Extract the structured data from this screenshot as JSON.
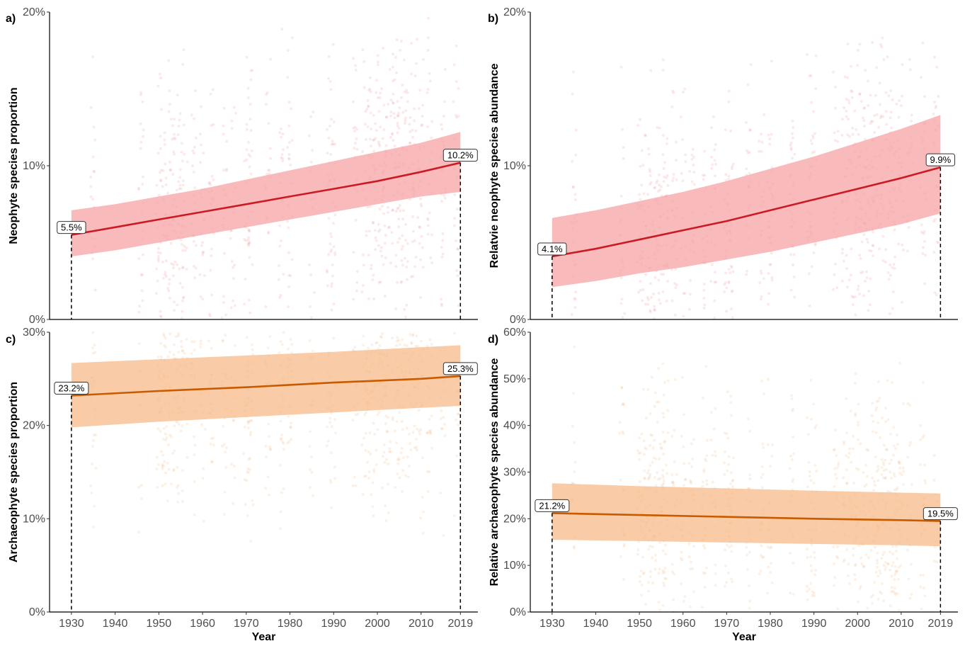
{
  "colors": {
    "neophyte_line": "#cc1a24",
    "neophyte_band": "#f7a3a6",
    "neophyte_points": "#e0505a",
    "archaeophyte_line": "#c85a00",
    "archaeophyte_band": "#f7b989",
    "archaeophyte_points": "#e38a3a"
  },
  "chart_data": [
    {
      "panel": "a)",
      "type": "line",
      "ylabel": "Neophyte species proportion",
      "xlabel": "",
      "xlim": [
        1925,
        2023
      ],
      "ylim": [
        0,
        20
      ],
      "y_ticks": [
        "0%",
        "10%",
        "20%"
      ],
      "y_tick_values": [
        0,
        10,
        20
      ],
      "x_ticks": [],
      "x_tick_values": [],
      "color_key": "neophyte",
      "series": [
        {
          "x": [
            1930,
            1940,
            1950,
            1960,
            1970,
            1980,
            1990,
            2000,
            2010,
            2019
          ],
          "values": [
            5.5,
            6.0,
            6.5,
            7.0,
            7.5,
            8.0,
            8.5,
            9.0,
            9.6,
            10.2
          ],
          "lower": [
            4.1,
            4.5,
            5.0,
            5.5,
            6.0,
            6.5,
            7.0,
            7.5,
            8.0,
            8.3
          ],
          "upper": [
            7.1,
            7.5,
            8.0,
            8.5,
            9.1,
            9.7,
            10.3,
            10.9,
            11.5,
            12.2
          ]
        }
      ],
      "callouts": [
        {
          "x": 1930,
          "y": 5.5,
          "label": "5.5%"
        },
        {
          "x": 2019,
          "y": 10.2,
          "label": "10.2%"
        }
      ]
    },
    {
      "panel": "b)",
      "type": "line",
      "ylabel": "Relatvie neophyte species abundance",
      "xlabel": "",
      "xlim": [
        1925,
        2023
      ],
      "ylim": [
        0,
        20
      ],
      "y_ticks": [
        "0%",
        "10%",
        "20%"
      ],
      "y_tick_values": [
        0,
        10,
        20
      ],
      "x_ticks": [],
      "x_tick_values": [],
      "color_key": "neophyte",
      "series": [
        {
          "x": [
            1930,
            1940,
            1950,
            1960,
            1970,
            1980,
            1990,
            2000,
            2010,
            2019
          ],
          "values": [
            4.1,
            4.6,
            5.2,
            5.8,
            6.4,
            7.1,
            7.8,
            8.5,
            9.2,
            9.9
          ],
          "lower": [
            2.1,
            2.5,
            3.0,
            3.4,
            3.9,
            4.4,
            5.0,
            5.6,
            6.2,
            6.9
          ],
          "upper": [
            6.6,
            7.1,
            7.7,
            8.3,
            9.0,
            9.8,
            10.6,
            11.5,
            12.4,
            13.3
          ]
        }
      ],
      "callouts": [
        {
          "x": 1930,
          "y": 4.1,
          "label": "4.1%"
        },
        {
          "x": 2019,
          "y": 9.9,
          "label": "9.9%"
        }
      ]
    },
    {
      "panel": "c)",
      "type": "line",
      "ylabel": "Archaeophyte species proportion",
      "xlabel": "Year",
      "xlim": [
        1925,
        2023
      ],
      "ylim": [
        0,
        30
      ],
      "y_ticks": [
        "0%",
        "10%",
        "20%",
        "30%"
      ],
      "y_tick_values": [
        0,
        10,
        20,
        30
      ],
      "x_ticks": [
        "1930",
        "1940",
        "1950",
        "1960",
        "1970",
        "1980",
        "1990",
        "2000",
        "2010",
        "2019"
      ],
      "x_tick_values": [
        1930,
        1940,
        1950,
        1960,
        1970,
        1980,
        1990,
        2000,
        2010,
        2019
      ],
      "color_key": "archaeophyte",
      "series": [
        {
          "x": [
            1930,
            1950,
            1970,
            1990,
            2010,
            2019
          ],
          "values": [
            23.2,
            23.7,
            24.1,
            24.6,
            25.0,
            25.3
          ],
          "lower": [
            19.8,
            20.4,
            20.9,
            21.4,
            21.9,
            22.1
          ],
          "upper": [
            26.7,
            27.1,
            27.5,
            27.9,
            28.4,
            28.6
          ]
        }
      ],
      "callouts": [
        {
          "x": 1930,
          "y": 23.2,
          "label": "23.2%"
        },
        {
          "x": 2019,
          "y": 25.3,
          "label": "25.3%"
        }
      ]
    },
    {
      "panel": "d)",
      "type": "line",
      "ylabel": "Relative archaeophyte species abundance",
      "xlabel": "Year",
      "xlim": [
        1925,
        2023
      ],
      "ylim": [
        0,
        60
      ],
      "y_ticks": [
        "0%",
        "10%",
        "20%",
        "30%",
        "40%",
        "50%",
        "60%"
      ],
      "y_tick_values": [
        0,
        10,
        20,
        30,
        40,
        50,
        60
      ],
      "x_ticks": [
        "1930",
        "1940",
        "1950",
        "1960",
        "1970",
        "1980",
        "1990",
        "2000",
        "2010",
        "2019"
      ],
      "x_tick_values": [
        1930,
        1940,
        1950,
        1960,
        1970,
        1980,
        1990,
        2000,
        2010,
        2019
      ],
      "color_key": "archaeophyte",
      "series": [
        {
          "x": [
            1930,
            1950,
            1970,
            1990,
            2010,
            2019
          ],
          "values": [
            21.2,
            20.8,
            20.4,
            20.0,
            19.7,
            19.5
          ],
          "lower": [
            15.5,
            15.2,
            14.9,
            14.6,
            14.3,
            14.1
          ],
          "upper": [
            27.6,
            27.0,
            26.5,
            26.0,
            25.6,
            25.4
          ]
        }
      ],
      "callouts": [
        {
          "x": 1930,
          "y": 21.2,
          "label": "21.2%"
        },
        {
          "x": 2019,
          "y": 19.5,
          "label": "19.5%"
        }
      ]
    }
  ]
}
